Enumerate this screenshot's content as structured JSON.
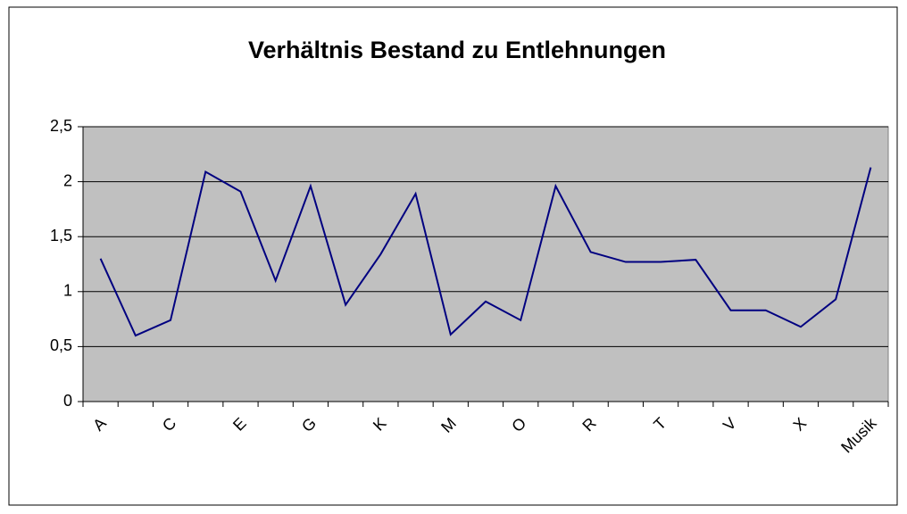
{
  "chart_data": {
    "type": "line",
    "title": "Verhältnis Bestand zu Entlehnungen",
    "categories": [
      "A",
      null,
      "C",
      null,
      "E",
      null,
      "G",
      null,
      "K",
      null,
      "M",
      null,
      "O",
      null,
      "R",
      null,
      "T",
      null,
      "V",
      null,
      "X",
      null,
      "Musik"
    ],
    "series": [
      {
        "name": null,
        "color": "#000080",
        "values": [
          1.3,
          0.6,
          0.74,
          2.09,
          1.91,
          1.1,
          1.96,
          0.88,
          1.34,
          1.89,
          0.61,
          0.91,
          0.74,
          1.96,
          1.36,
          1.27,
          1.27,
          1.29,
          0.83,
          0.83,
          0.68,
          0.93,
          2.13
        ]
      }
    ],
    "ylim": [
      0,
      2.5
    ],
    "yticks": [
      0,
      {
        "value": 0.5,
        "label": "0,5"
      },
      1,
      {
        "value": 1.5,
        "label": "1,5"
      },
      2,
      {
        "value": 2.5,
        "label": "2,5"
      }
    ],
    "grid": true,
    "plot_background": "#c0c0c0"
  }
}
